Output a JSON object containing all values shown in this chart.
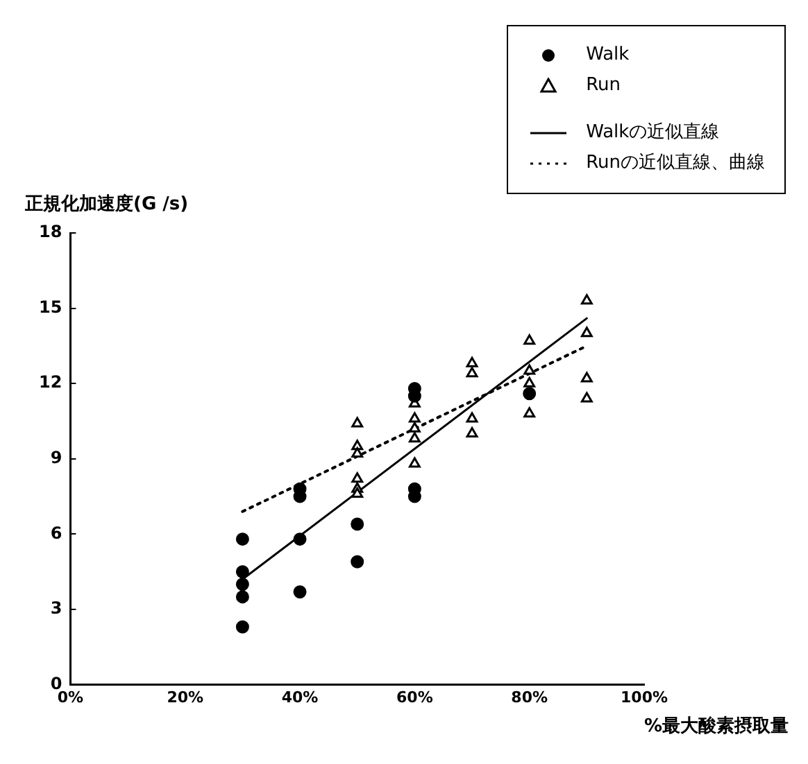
{
  "chart_data": {
    "type": "scatter",
    "ylabel": "正規化加速度(G /s)",
    "xlabel": "%最大酸素摂取量",
    "xlim": [
      0,
      100
    ],
    "xticks": [
      {
        "value": 0,
        "label": "0%"
      },
      {
        "value": 20,
        "label": "20%"
      },
      {
        "value": 40,
        "label": "40%"
      },
      {
        "value": 60,
        "label": "60%"
      },
      {
        "value": 80,
        "label": "80%"
      },
      {
        "value": 100,
        "label": "100%"
      }
    ],
    "ylim": [
      0,
      18
    ],
    "yticks": [
      0,
      3,
      6,
      9,
      12,
      15,
      18
    ],
    "grid": false,
    "legend": "top right",
    "series": [
      {
        "name": "Walk",
        "type": "scatter",
        "marker": "circle",
        "color": "#000000",
        "x": [
          30,
          30,
          30,
          30,
          30,
          40,
          40,
          40,
          40,
          50,
          50,
          60,
          60,
          60,
          60,
          80
        ],
        "values": [
          5.8,
          4.5,
          4.0,
          3.5,
          2.3,
          7.8,
          7.5,
          5.8,
          3.7,
          6.4,
          4.9,
          11.8,
          11.5,
          7.8,
          7.5,
          11.6
        ]
      },
      {
        "name": "Run",
        "type": "scatter",
        "marker": "triangle",
        "color": "#000000",
        "x": [
          50,
          50,
          50,
          50,
          50,
          50,
          60,
          60,
          60,
          60,
          60,
          70,
          70,
          70,
          70,
          80,
          80,
          80,
          80,
          90,
          90,
          90,
          90
        ],
        "values": [
          10.4,
          9.5,
          9.2,
          8.2,
          7.8,
          7.6,
          11.2,
          10.6,
          10.2,
          9.8,
          8.8,
          12.8,
          12.4,
          10.6,
          10.0,
          13.7,
          12.5,
          12.0,
          10.8,
          15.3,
          14.0,
          12.2,
          11.4
        ]
      },
      {
        "name": "Walkの近似直線",
        "type": "line",
        "marker": "none",
        "line_style": "solid",
        "color": "#000000",
        "x": [
          30,
          90
        ],
        "values": [
          4.2,
          14.6
        ]
      },
      {
        "name": "Runの近似直線、曲線",
        "type": "line",
        "marker": "none",
        "line_style": "dotted",
        "color": "#000000",
        "x": [
          30,
          90
        ],
        "values": [
          6.9,
          13.5
        ]
      }
    ]
  }
}
